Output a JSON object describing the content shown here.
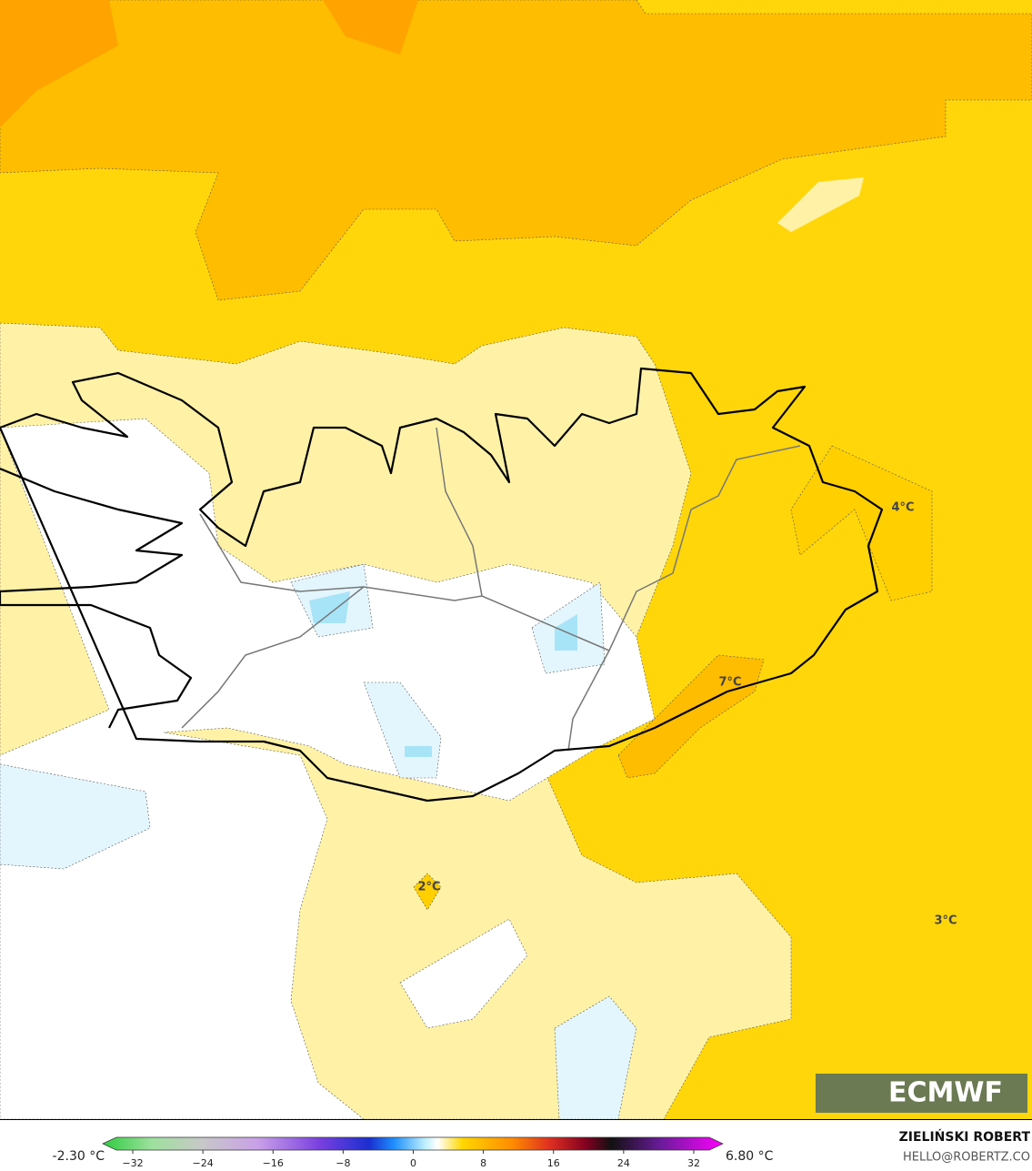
{
  "map_labels": [
    "4°C",
    "7°C",
    "2°C",
    "3°C"
  ],
  "logo": "ECMWF",
  "credit": {
    "name": "ZIELIŃSKI ROBERT",
    "email": "HELLO@ROBERTZ.CO"
  },
  "colorbar": {
    "min_label": "-2.30 °C",
    "max_label": "6.80 °C",
    "ticks": [
      {
        "value": -32,
        "label": "−32"
      },
      {
        "value": -24,
        "label": "−24"
      },
      {
        "value": -16,
        "label": "−16"
      },
      {
        "value": -8,
        "label": "−8"
      },
      0,
      8,
      16,
      24,
      32
    ]
  }
}
